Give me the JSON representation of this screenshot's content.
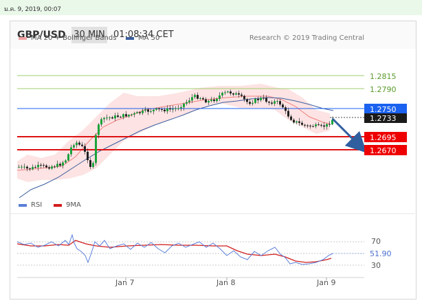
{
  "topbar": {
    "date": "ม.ค. 9, 2019, 00:07"
  },
  "header": {
    "symbol": "GBP/USD",
    "timeframe": "30 MIN",
    "time": "01:08:34 CET"
  },
  "legend": {
    "ma20_label": "MA 20 + Bollinger Bands",
    "ma50_label": "MA 50",
    "credit": "Research © 2019 Trading Central"
  },
  "rsi_legend": {
    "rsi_label": "RSI",
    "ma9_label": "9MA"
  },
  "colors": {
    "bb": "#f3a2a2",
    "ma50": "#3b5fa0",
    "support": "#dd1111",
    "resistance_line": "#9fcf6f",
    "price_tag": "#1b62f0",
    "rsi": "#5b7fd8",
    "ma9": "#d21c1c",
    "arrow": "#2f5f9f"
  },
  "chart_data": [
    {
      "type": "candlestick",
      "series": [
        {
          "name": "MA 20 + Bollinger Bands"
        },
        {
          "name": "MA 50"
        }
      ],
      "x_labels": [
        "Jan 7",
        "Jan 8",
        "Jan 9"
      ],
      "levels": [
        {
          "value": "1.2815",
          "kind": "resistance"
        },
        {
          "value": "1.2790",
          "kind": "resistance"
        },
        {
          "value": "1.2750",
          "kind": "current-level"
        },
        {
          "value": "1.2733",
          "kind": "last-price"
        },
        {
          "value": "1.2695",
          "kind": "support"
        },
        {
          "value": "1.2670",
          "kind": "support"
        }
      ],
      "forecast_arrow": "down"
    },
    {
      "type": "line",
      "series": [
        {
          "name": "RSI",
          "last_value": "51.90"
        },
        {
          "name": "9MA"
        }
      ],
      "y_ticks": [
        "70",
        "30"
      ],
      "grid": "dotted at 70, 50, 30"
    }
  ]
}
